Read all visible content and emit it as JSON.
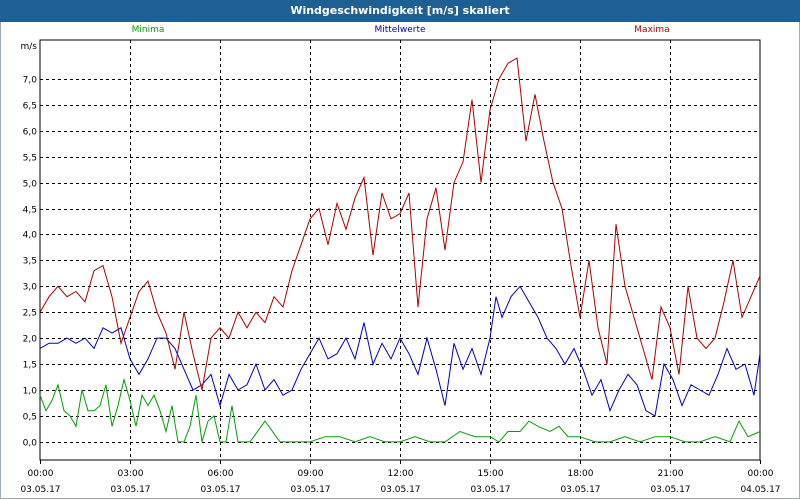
{
  "window": {
    "title": "Windgeschwindigkeit [m/s] skaliert"
  },
  "chart_data": {
    "type": "line",
    "ylabel": "m/s",
    "ylim": [
      -0.35,
      7.75
    ],
    "yticks": [
      "0,0",
      "0,5",
      "1,0",
      "1,5",
      "2,0",
      "2,5",
      "3,0",
      "3,5",
      "4,0",
      "4,5",
      "5,0",
      "5,5",
      "6,0",
      "6,5",
      "7,0"
    ],
    "x_range_hours": [
      0,
      24
    ],
    "xticks": [
      {
        "time": "00:00",
        "date": "03.05.17"
      },
      {
        "time": "03:00",
        "date": "03.05.17"
      },
      {
        "time": "06:00",
        "date": "03.05.17"
      },
      {
        "time": "09:00",
        "date": "03.05.17"
      },
      {
        "time": "12:00",
        "date": "03.05.17"
      },
      {
        "time": "15:00",
        "date": "03.05.17"
      },
      {
        "time": "18:00",
        "date": "03.05.17"
      },
      {
        "time": "21:00",
        "date": "03.05.17"
      },
      {
        "time": "00:00",
        "date": "04.05.17"
      }
    ],
    "grid": true,
    "legend_position": "top",
    "series": [
      {
        "name": "Minima",
        "color": "#00a000",
        "x": [
          0.0,
          0.2,
          0.4,
          0.6,
          0.8,
          1.0,
          1.2,
          1.4,
          1.6,
          1.8,
          2.0,
          2.2,
          2.4,
          2.6,
          2.8,
          3.0,
          3.2,
          3.4,
          3.6,
          3.8,
          4.0,
          4.2,
          4.4,
          4.6,
          4.8,
          5.0,
          5.2,
          5.4,
          5.6,
          5.8,
          6.0,
          6.2,
          6.4,
          6.6,
          6.8,
          7.0,
          7.5,
          8.0,
          8.5,
          8.7,
          9.0,
          9.5,
          10.0,
          10.5,
          11.0,
          11.5,
          12.0,
          12.5,
          13.0,
          13.5,
          14.0,
          14.5,
          15.0,
          15.3,
          15.6,
          16.0,
          16.3,
          16.6,
          17.0,
          17.3,
          17.6,
          18.0,
          18.5,
          19.0,
          19.5,
          20.0,
          20.5,
          21.0,
          21.5,
          22.0,
          22.5,
          23.0,
          23.3,
          23.6,
          24.0
        ],
        "y": [
          0.9,
          0.6,
          0.8,
          1.1,
          0.6,
          0.5,
          0.3,
          1.0,
          0.6,
          0.6,
          0.7,
          1.1,
          0.3,
          0.7,
          1.2,
          0.8,
          0.3,
          0.9,
          0.7,
          0.9,
          0.6,
          0.2,
          0.7,
          0.0,
          0.0,
          0.3,
          0.9,
          0.0,
          0.4,
          0.5,
          0.0,
          0.0,
          0.7,
          0.0,
          0.0,
          0.0,
          0.4,
          0.0,
          0.0,
          0.0,
          0.0,
          0.1,
          0.1,
          0.0,
          0.1,
          0.0,
          0.0,
          0.1,
          0.0,
          0.0,
          0.2,
          0.1,
          0.1,
          0.0,
          0.2,
          0.2,
          0.4,
          0.3,
          0.2,
          0.3,
          0.1,
          0.1,
          0.0,
          0.0,
          0.1,
          0.0,
          0.1,
          0.1,
          0.0,
          0.0,
          0.1,
          0.0,
          0.4,
          0.1,
          0.2
        ]
      },
      {
        "name": "Mittelwerte",
        "color": "#0000c0",
        "x": [
          0.0,
          0.3,
          0.6,
          0.9,
          1.2,
          1.5,
          1.8,
          2.1,
          2.4,
          2.7,
          3.0,
          3.3,
          3.6,
          3.9,
          4.2,
          4.5,
          4.8,
          5.1,
          5.4,
          5.7,
          6.0,
          6.3,
          6.6,
          6.9,
          7.2,
          7.5,
          7.8,
          8.1,
          8.4,
          8.7,
          9.0,
          9.3,
          9.6,
          9.9,
          10.2,
          10.5,
          10.8,
          11.1,
          11.4,
          11.7,
          12.0,
          12.3,
          12.6,
          12.9,
          13.2,
          13.5,
          13.8,
          14.1,
          14.4,
          14.7,
          15.0,
          15.2,
          15.4,
          15.7,
          16.0,
          16.3,
          16.6,
          16.9,
          17.2,
          17.5,
          17.8,
          18.1,
          18.4,
          18.7,
          19.0,
          19.3,
          19.6,
          19.9,
          20.2,
          20.5,
          20.8,
          21.1,
          21.4,
          21.7,
          22.0,
          22.3,
          22.6,
          22.9,
          23.2,
          23.5,
          23.8,
          24.0
        ],
        "y": [
          1.8,
          1.9,
          1.9,
          2.0,
          1.9,
          2.0,
          1.8,
          2.2,
          2.1,
          2.2,
          1.6,
          1.3,
          1.6,
          2.0,
          2.0,
          1.8,
          1.4,
          1.0,
          1.1,
          1.3,
          0.7,
          1.3,
          1.0,
          1.1,
          1.5,
          1.0,
          1.2,
          0.9,
          1.0,
          1.4,
          1.7,
          2.0,
          1.6,
          1.7,
          2.0,
          1.6,
          2.3,
          1.5,
          1.9,
          1.6,
          2.0,
          1.7,
          1.3,
          2.0,
          1.4,
          0.7,
          1.9,
          1.4,
          1.8,
          1.3,
          2.0,
          2.8,
          2.4,
          2.8,
          3.0,
          2.7,
          2.4,
          2.0,
          1.8,
          1.5,
          1.8,
          1.4,
          0.9,
          1.2,
          0.6,
          1.0,
          1.3,
          1.1,
          0.6,
          0.5,
          1.5,
          1.2,
          0.7,
          1.1,
          1.0,
          0.9,
          1.3,
          1.8,
          1.4,
          1.5,
          0.9,
          1.7
        ]
      },
      {
        "name": "Maxima",
        "color": "#b00000",
        "x": [
          0.0,
          0.3,
          0.6,
          0.9,
          1.2,
          1.5,
          1.8,
          2.1,
          2.4,
          2.7,
          3.0,
          3.3,
          3.6,
          3.9,
          4.2,
          4.5,
          4.8,
          5.1,
          5.4,
          5.7,
          6.0,
          6.3,
          6.6,
          6.9,
          7.2,
          7.5,
          7.8,
          8.1,
          8.4,
          8.7,
          9.0,
          9.3,
          9.6,
          9.9,
          10.2,
          10.5,
          10.8,
          11.1,
          11.4,
          11.7,
          12.0,
          12.3,
          12.6,
          12.9,
          13.2,
          13.5,
          13.8,
          14.1,
          14.4,
          14.7,
          15.0,
          15.3,
          15.6,
          15.9,
          16.2,
          16.5,
          16.8,
          17.1,
          17.4,
          17.7,
          18.0,
          18.3,
          18.6,
          18.9,
          19.2,
          19.5,
          19.8,
          20.1,
          20.4,
          20.7,
          21.0,
          21.3,
          21.6,
          21.9,
          22.2,
          22.5,
          22.8,
          23.1,
          23.4,
          23.7,
          24.0
        ],
        "y": [
          2.5,
          2.8,
          3.0,
          2.8,
          2.9,
          2.7,
          3.3,
          3.4,
          2.8,
          1.9,
          2.4,
          2.9,
          3.1,
          2.5,
          2.1,
          1.4,
          2.5,
          1.7,
          1.0,
          2.0,
          2.2,
          2.0,
          2.5,
          2.2,
          2.5,
          2.3,
          2.8,
          2.6,
          3.3,
          3.8,
          4.3,
          4.5,
          3.8,
          4.6,
          4.1,
          4.7,
          5.1,
          3.6,
          4.8,
          4.3,
          4.4,
          4.8,
          2.6,
          4.3,
          4.9,
          3.7,
          5.0,
          5.4,
          6.6,
          5.0,
          6.4,
          7.0,
          7.3,
          7.4,
          5.8,
          6.7,
          5.8,
          5.0,
          4.5,
          3.4,
          2.4,
          3.5,
          2.2,
          1.5,
          4.2,
          3.0,
          2.4,
          1.8,
          1.2,
          2.6,
          2.2,
          1.3,
          3.0,
          2.0,
          1.8,
          2.0,
          2.7,
          3.5,
          2.4,
          2.8,
          3.2
        ]
      }
    ]
  }
}
